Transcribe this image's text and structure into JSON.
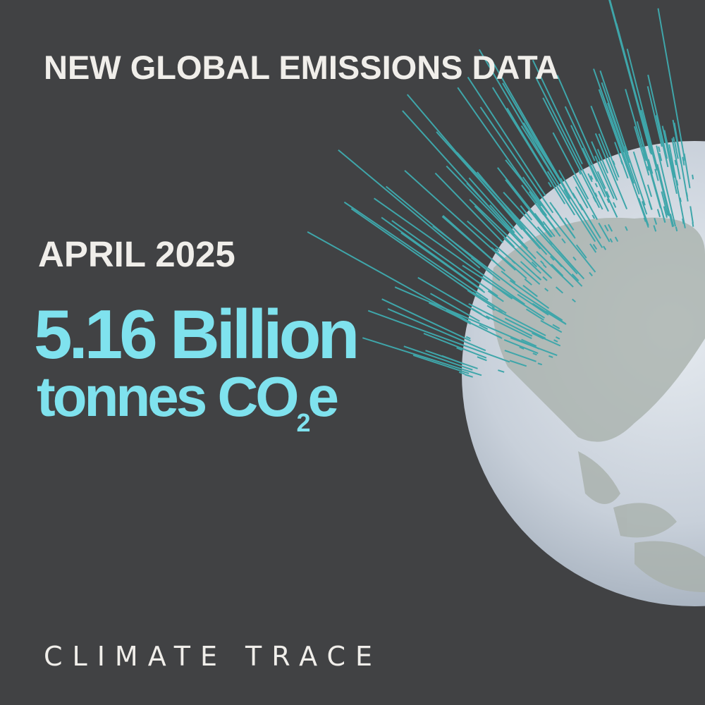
{
  "header": {
    "title": "NEW GLOBAL EMISSIONS DATA"
  },
  "stat": {
    "period": "APRIL 2025",
    "figure": "5.16 Billion",
    "unit_main": "tonnes CO",
    "unit_sub": "2",
    "unit_tail": "e"
  },
  "footer": {
    "brand": "CLIMATE TRACE"
  }
}
